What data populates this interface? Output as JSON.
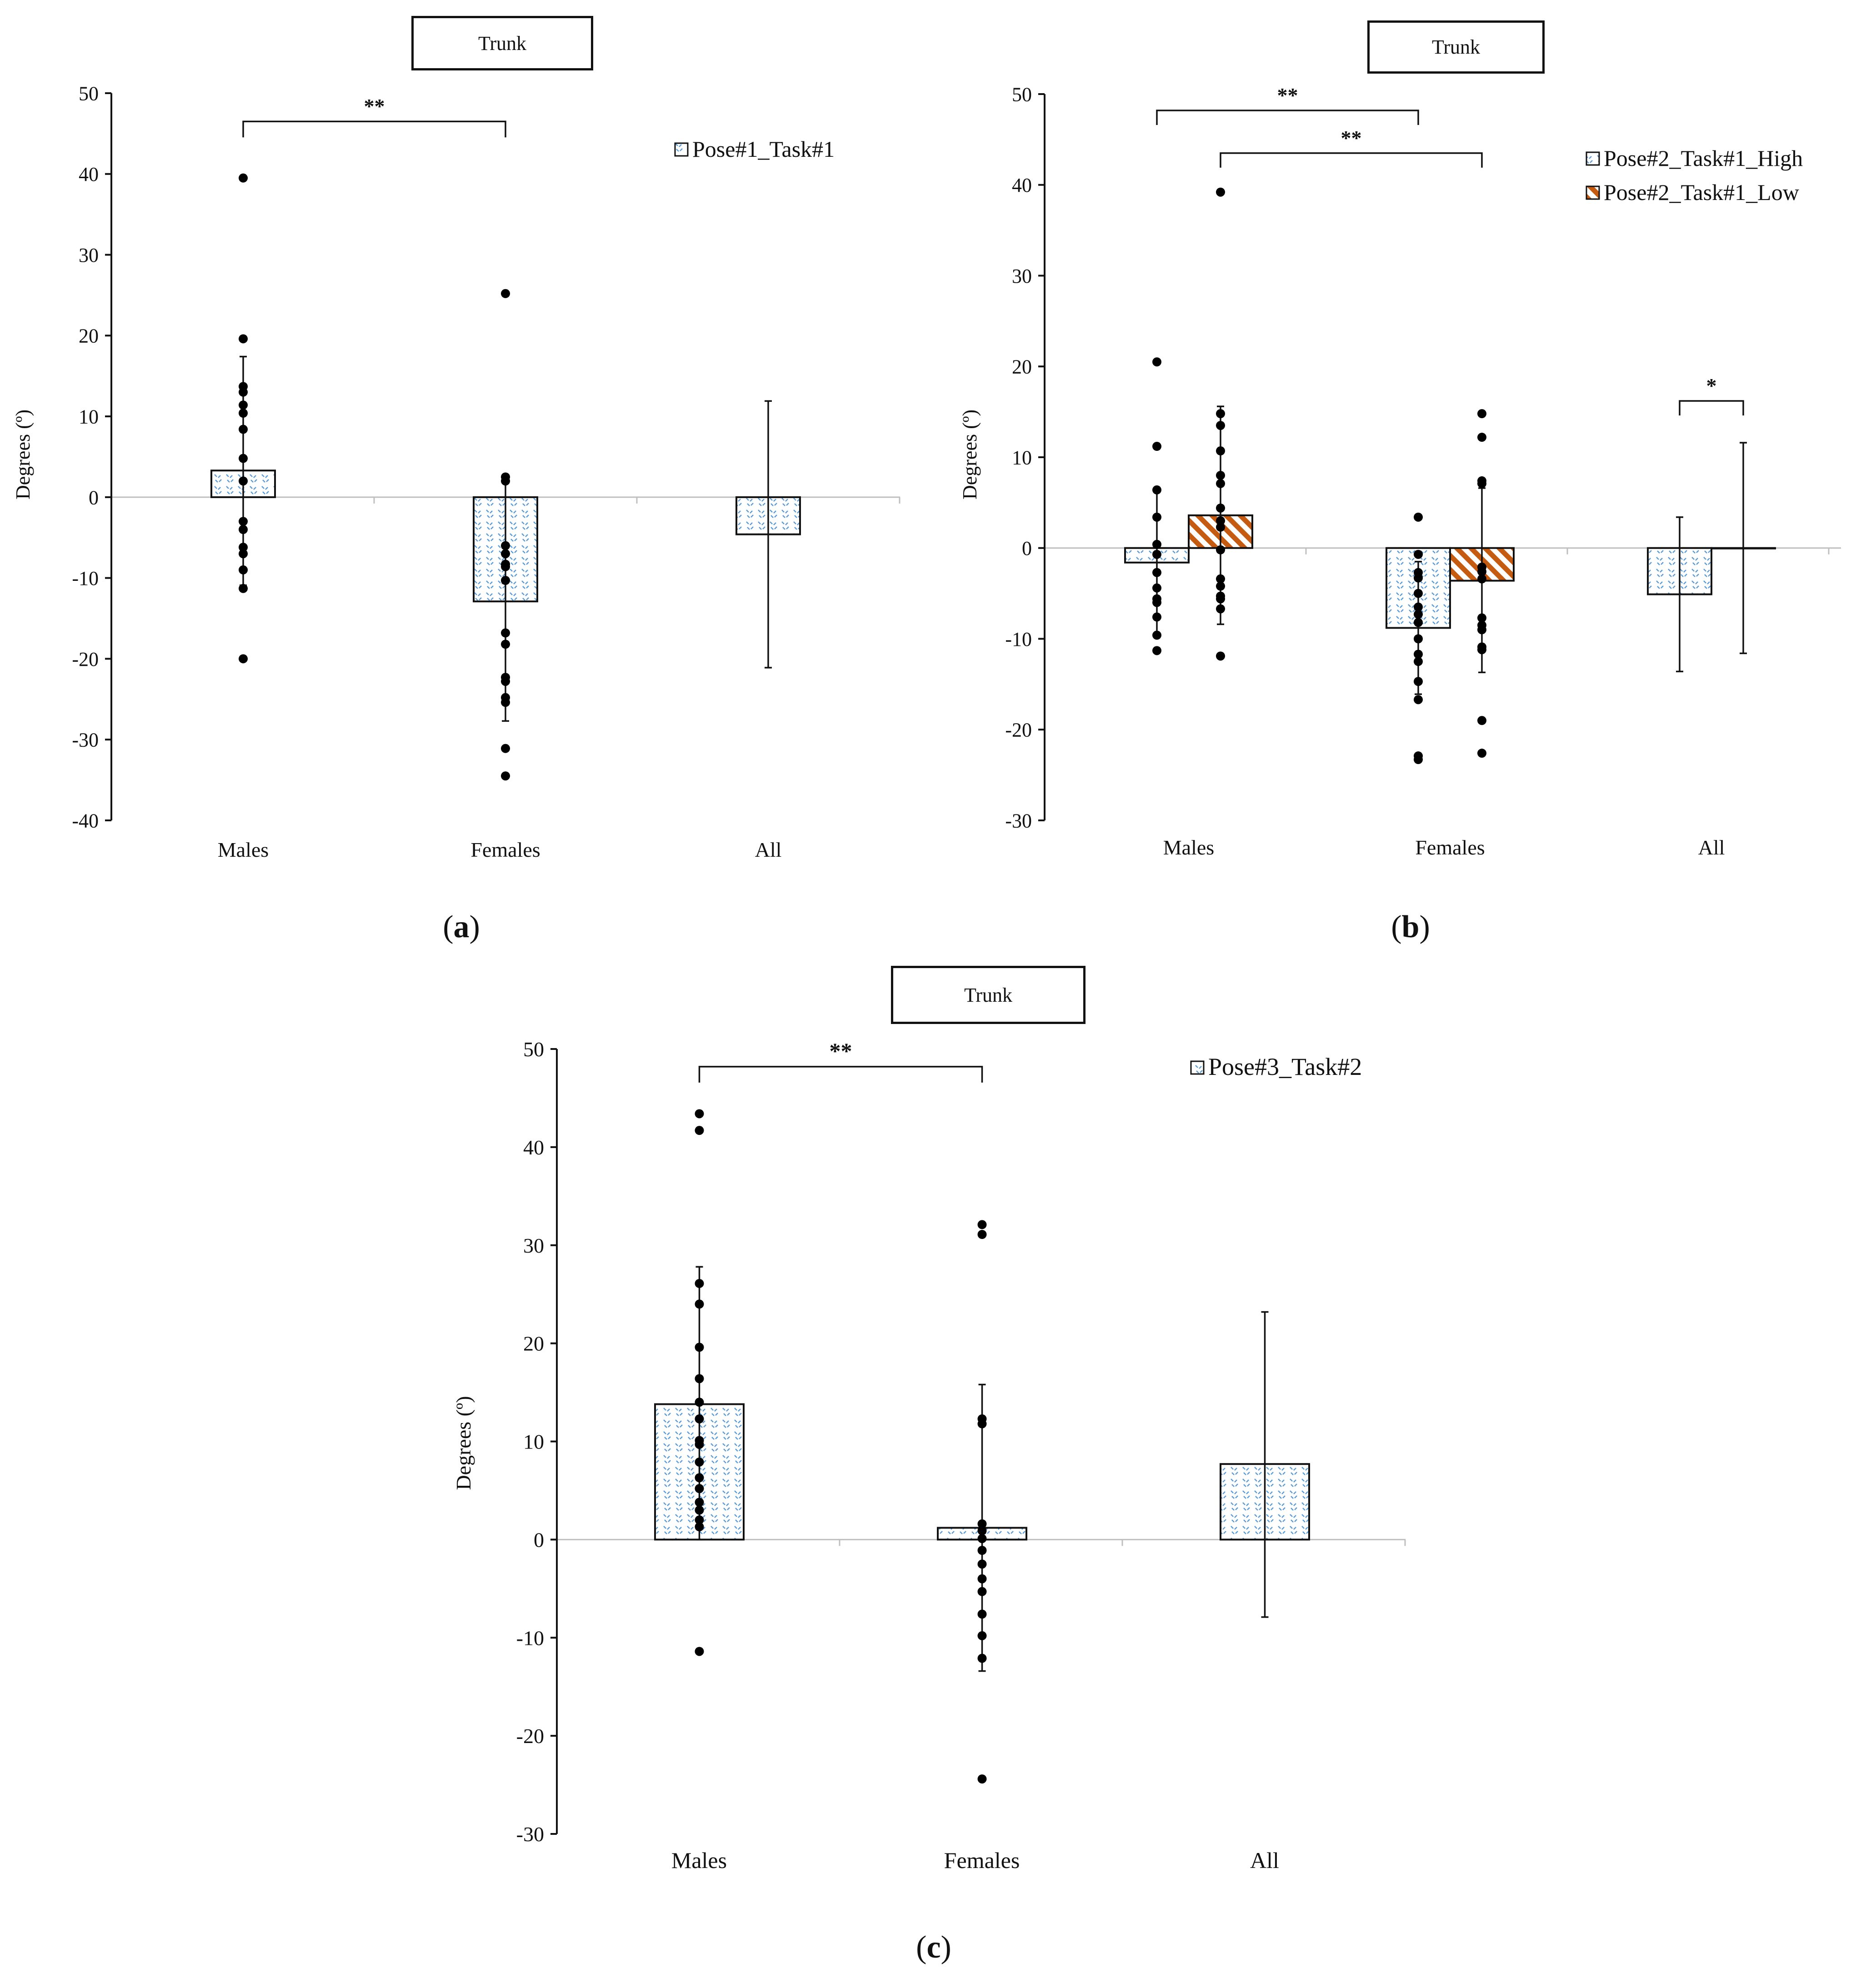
{
  "figure": {
    "panels": [
      {
        "id": "a",
        "title": "Trunk",
        "caption_letter": "a"
      },
      {
        "id": "b",
        "title": "Trunk",
        "caption_letter": "b"
      },
      {
        "id": "c",
        "title": "Trunk",
        "caption_letter": "c"
      }
    ],
    "colors": {
      "axis": "#111111",
      "zero_line": "#bfbfbf",
      "dot": "#000000",
      "pattern_blue": "#5b9bd5",
      "pattern_orange": "#c55a11"
    }
  },
  "chart_data": [
    {
      "type": "bar",
      "title": "Trunk",
      "xlabel": "",
      "ylabel": "Degrees (º)",
      "ylim": [
        -40,
        50
      ],
      "yticks": [
        -40,
        -30,
        -20,
        -10,
        0,
        10,
        20,
        30,
        40,
        50
      ],
      "categories": [
        "Males",
        "Females",
        "All"
      ],
      "series": [
        {
          "name": "Pose#1_Task#1",
          "pattern": "blue",
          "values": [
            3.3,
            -12.9,
            -4.6
          ],
          "error_low": [
            -10.9,
            -27.7,
            -21.1
          ],
          "error_high": [
            17.4,
            2.0,
            11.9
          ],
          "points": [
            [
              39.5,
              19.6,
              13.7,
              13.0,
              11.4,
              10.4,
              8.4,
              4.8,
              2.0,
              -3.0,
              -4.0,
              -6.2,
              -7.0,
              -9.0,
              -11.3,
              -20.0
            ],
            [
              25.2,
              2.5,
              2.0,
              -6.0,
              -7.0,
              -8.3,
              -8.6,
              -10.3,
              -16.8,
              -18.2,
              -22.3,
              -22.8,
              -24.8,
              -25.4,
              -31.1,
              -34.5
            ],
            []
          ]
        }
      ],
      "significance": [
        {
          "label": "**",
          "from": 0,
          "to": 1,
          "y": 46.5
        }
      ],
      "legend_position": "top-right"
    },
    {
      "type": "bar",
      "title": "Trunk",
      "xlabel": "",
      "ylabel": "Degrees (º)",
      "ylim": [
        -30,
        50
      ],
      "yticks": [
        -30,
        -20,
        -10,
        0,
        10,
        20,
        30,
        40,
        50
      ],
      "categories": [
        "Males",
        "Females",
        "All"
      ],
      "series": [
        {
          "name": "Pose#2_Task#1_High",
          "pattern": "blue",
          "values": [
            -1.6,
            -8.8,
            -5.1
          ],
          "error_low": [
            -9.7,
            -16.1,
            -13.6
          ],
          "error_high": [
            6.5,
            -1.5,
            3.4
          ],
          "points": [
            [
              20.5,
              11.2,
              6.4,
              3.4,
              0.4,
              -0.7,
              -2.7,
              -4.4,
              -5.6,
              -6.0,
              -7.6,
              -9.6,
              -11.3
            ],
            [
              3.4,
              -0.7,
              -2.7,
              -3.3,
              -5.0,
              -6.5,
              -7.3,
              -8.2,
              -10.0,
              -11.7,
              -12.5,
              -14.7,
              -16.7,
              -22.9,
              -23.3
            ],
            []
          ]
        },
        {
          "name": "Pose#2_Task#1_Low",
          "pattern": "orange",
          "values": [
            3.6,
            -3.6,
            0.0
          ],
          "error_low": [
            -8.4,
            -13.7,
            -11.6
          ],
          "error_high": [
            15.6,
            6.6,
            11.6
          ],
          "points": [
            [
              39.2,
              14.8,
              13.5,
              10.7,
              8.0,
              7.1,
              4.4,
              3.0,
              2.3,
              -0.2,
              -3.4,
              -4.2,
              -5.3,
              -5.6,
              -6.7,
              -11.9
            ],
            [
              14.8,
              12.2,
              7.4,
              7.1,
              -2.1,
              -2.6,
              -3.4,
              -7.7,
              -8.5,
              -9.0,
              -10.9,
              -11.2,
              -19.0,
              -22.6
            ],
            []
          ]
        }
      ],
      "significance": [
        {
          "label": "**",
          "from": [
            0,
            0
          ],
          "to": [
            1,
            0
          ],
          "y": 48.2
        },
        {
          "label": "**",
          "from": [
            0,
            1
          ],
          "to": [
            1,
            1
          ],
          "y": 43.5
        },
        {
          "label": "*",
          "from": [
            2,
            0
          ],
          "to": [
            2,
            1
          ],
          "y": 16.2
        }
      ],
      "legend_position": "top-right"
    },
    {
      "type": "bar",
      "title": "Trunk",
      "xlabel": "",
      "ylabel": "Degrees (º)",
      "ylim": [
        -30,
        50
      ],
      "yticks": [
        -30,
        -20,
        -10,
        0,
        10,
        20,
        30,
        40,
        50
      ],
      "categories": [
        "Males",
        "Females",
        "All"
      ],
      "series": [
        {
          "name": "Pose#3_Task#2",
          "pattern": "blue",
          "values": [
            13.8,
            1.2,
            7.7
          ],
          "error_low": [
            0.0,
            -13.4,
            -7.9
          ],
          "error_high": [
            27.8,
            15.8,
            23.2
          ],
          "points": [
            [
              43.4,
              41.7,
              26.1,
              24.0,
              19.6,
              16.4,
              14.0,
              12.3,
              10.1,
              9.7,
              7.9,
              6.3,
              5.2,
              3.8,
              3.0,
              2.0,
              1.3,
              -11.4
            ],
            [
              32.1,
              31.1,
              12.3,
              11.8,
              1.6,
              0.9,
              0.1,
              -1.1,
              -2.5,
              -4.0,
              -5.3,
              -7.6,
              -9.8,
              -12.1,
              -24.4
            ],
            []
          ]
        }
      ],
      "significance": [
        {
          "label": "**",
          "from": 0,
          "to": 1,
          "y": 48.2
        }
      ],
      "legend_position": "top-right"
    }
  ]
}
